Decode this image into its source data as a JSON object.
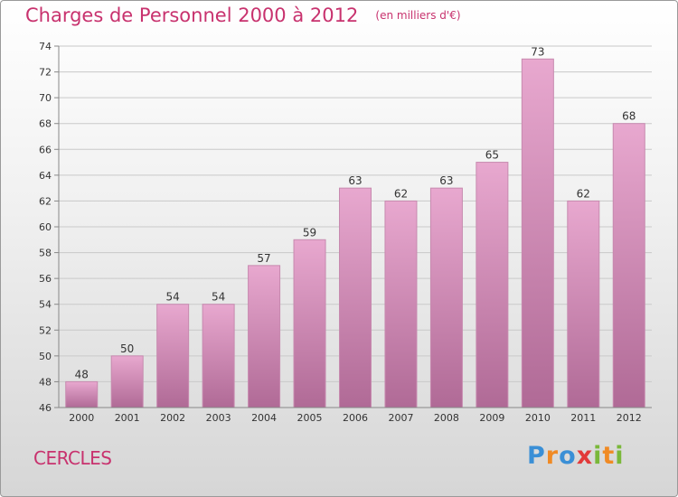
{
  "header": {
    "title": "Charges de Personnel 2000 à 2012",
    "subtitle": "(en milliers d'€)"
  },
  "footer": {
    "town": "CERCLES",
    "logo_text": "Proxiti"
  },
  "colors": {
    "title": "#c8326e",
    "bar_top": "#e8a8cf",
    "bar_bottom": "#b06a96",
    "grid": "#c9c9c9"
  },
  "chart_data": {
    "type": "bar",
    "title": "Charges de Personnel 2000 à 2012",
    "subtitle": "(en milliers d'€)",
    "xlabel": "",
    "ylabel": "",
    "categories": [
      "2000",
      "2001",
      "2002",
      "2003",
      "2004",
      "2005",
      "2006",
      "2007",
      "2008",
      "2009",
      "2010",
      "2011",
      "2012"
    ],
    "values": [
      48,
      50,
      54,
      54,
      57,
      59,
      63,
      62,
      63,
      65,
      73,
      62,
      68
    ],
    "ylim": [
      46,
      74
    ],
    "yticks": [
      46,
      48,
      50,
      52,
      54,
      56,
      58,
      60,
      62,
      64,
      66,
      68,
      70,
      72,
      74
    ],
    "grid": true,
    "legend": "none"
  }
}
